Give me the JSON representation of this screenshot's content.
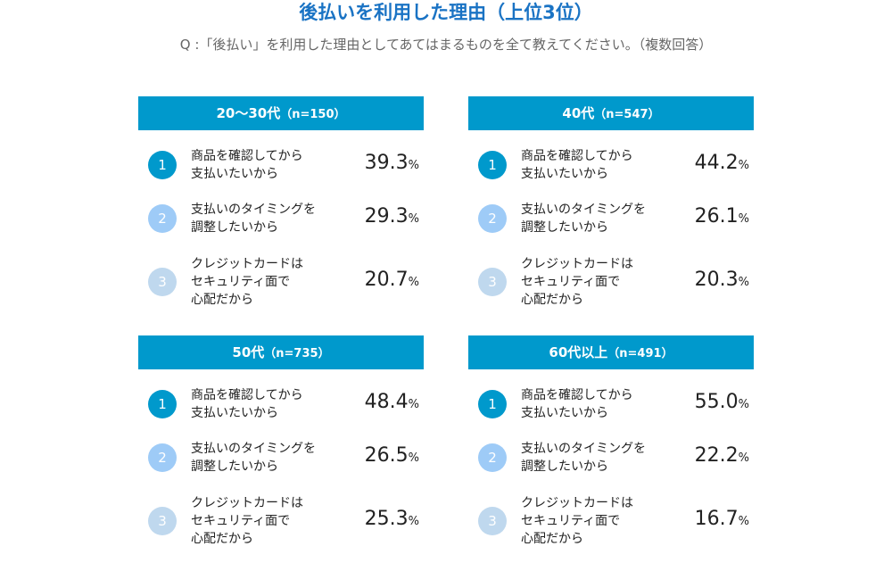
{
  "title": "後払いを利用した理由（上位3位）",
  "question": "Q :「後払い」を利用した理由としてあてはまるものを全て教えてください。（複数回答）",
  "colors": {
    "title": "#1a73c4",
    "header": "#0099cc",
    "rank1": "#0099cc",
    "rank2": "#9ecbf7",
    "rank3": "#bfd8ee"
  },
  "percent_unit": "%",
  "panels": [
    {
      "group": "20〜30代",
      "n": "（n=150）",
      "items": [
        {
          "rank": "1",
          "reason": "商品を確認してから\n支払いたいから",
          "value": "39.3"
        },
        {
          "rank": "2",
          "reason": "支払いのタイミングを\n調整したいから",
          "value": "29.3"
        },
        {
          "rank": "3",
          "reason": "クレジットカードは\nセキュリティ面で\n心配だから",
          "value": "20.7"
        }
      ]
    },
    {
      "group": "40代",
      "n": "（n=547）",
      "items": [
        {
          "rank": "1",
          "reason": "商品を確認してから\n支払いたいから",
          "value": "44.2"
        },
        {
          "rank": "2",
          "reason": "支払いのタイミングを\n調整したいから",
          "value": "26.1"
        },
        {
          "rank": "3",
          "reason": "クレジットカードは\nセキュリティ面で\n心配だから",
          "value": "20.3"
        }
      ]
    },
    {
      "group": "50代",
      "n": "（n=735）",
      "items": [
        {
          "rank": "1",
          "reason": "商品を確認してから\n支払いたいから",
          "value": "48.4"
        },
        {
          "rank": "2",
          "reason": "支払いのタイミングを\n調整したいから",
          "value": "26.5"
        },
        {
          "rank": "3",
          "reason": "クレジットカードは\nセキュリティ面で\n心配だから",
          "value": "25.3"
        }
      ]
    },
    {
      "group": "60代以上",
      "n": "（n=491）",
      "items": [
        {
          "rank": "1",
          "reason": "商品を確認してから\n支払いたいから",
          "value": "55.0"
        },
        {
          "rank": "2",
          "reason": "支払いのタイミングを\n調整したいから",
          "value": "22.2"
        },
        {
          "rank": "3",
          "reason": "クレジットカードは\nセキュリティ面で\n心配だから",
          "value": "16.7"
        }
      ]
    }
  ]
}
